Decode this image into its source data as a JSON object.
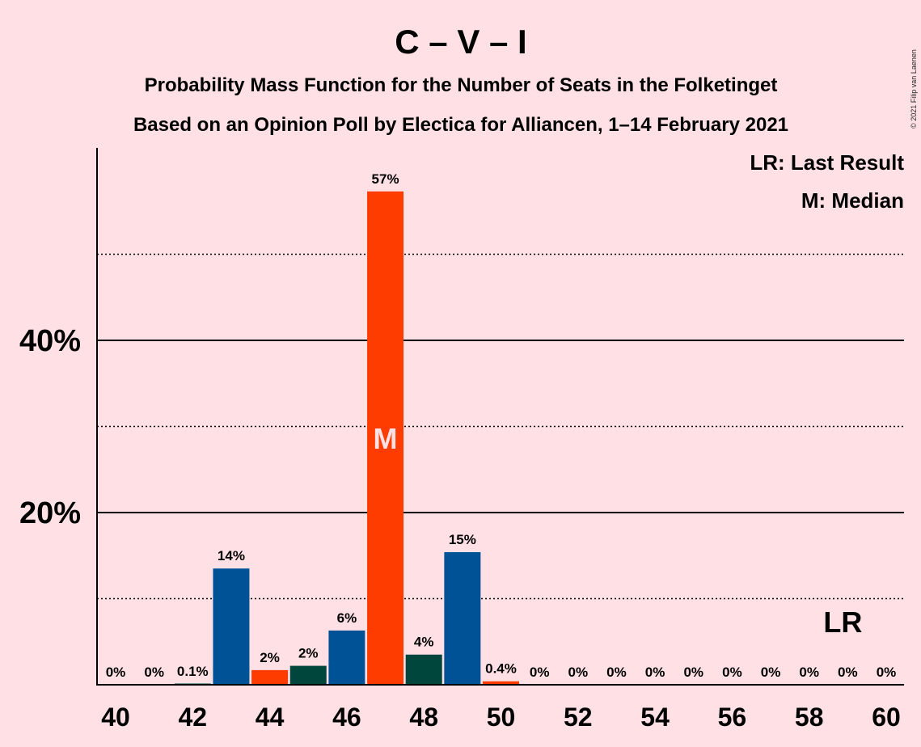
{
  "chart_data": {
    "type": "bar",
    "title": "C – V – I",
    "subtitle_1": "Probability Mass Function for the Number of Seats in the Folketinget",
    "subtitle_2": "Based on an Opinion Poll by Electica for Alliancen, 1–14 February 2021",
    "copyright": "© 2021 Filip van Laenen",
    "legend": {
      "lr": "LR: Last Result",
      "m": "M: Median",
      "placement": "top-right"
    },
    "x": [
      40,
      41,
      42,
      43,
      44,
      45,
      46,
      47,
      48,
      49,
      50,
      51,
      52,
      53,
      54,
      55,
      56,
      57,
      58,
      59,
      60
    ],
    "values": [
      0,
      0,
      0.1,
      13.5,
      1.7,
      2.2,
      6.3,
      57.3,
      3.5,
      15.4,
      0.4,
      0,
      0,
      0,
      0,
      0,
      0,
      0,
      0,
      0,
      0
    ],
    "labels": [
      "0%",
      "0%",
      "0.1%",
      "14%",
      "2%",
      "2%",
      "6%",
      "57%",
      "4%",
      "15%",
      "0.4%",
      "0%",
      "0%",
      "0%",
      "0%",
      "0%",
      "0%",
      "0%",
      "0%",
      "0%",
      "0%"
    ],
    "bar_colors": [
      "#005296",
      "#ff3c00",
      "#00463c",
      "#005296",
      "#ff3c00",
      "#00463c",
      "#005296",
      "#ff3c00",
      "#00463c",
      "#005296",
      "#ff3c00",
      "#00463c",
      "#005296",
      "#ff3c00",
      "#00463c",
      "#005296",
      "#ff3c00",
      "#00463c",
      "#005296",
      "#ff3c00",
      "#00463c"
    ],
    "x_ticks": [
      "40",
      "42",
      "44",
      "46",
      "48",
      "50",
      "52",
      "54",
      "56",
      "58",
      "60"
    ],
    "y_ticks": [
      "20%",
      "40%"
    ],
    "ylim": [
      0,
      62
    ],
    "grid": {
      "solid_at": [
        20,
        40
      ],
      "dotted_at": [
        10,
        30,
        50
      ]
    },
    "median_seat": 47,
    "median_label": "M",
    "last_result_seat": 59,
    "last_result_label": "LR"
  }
}
